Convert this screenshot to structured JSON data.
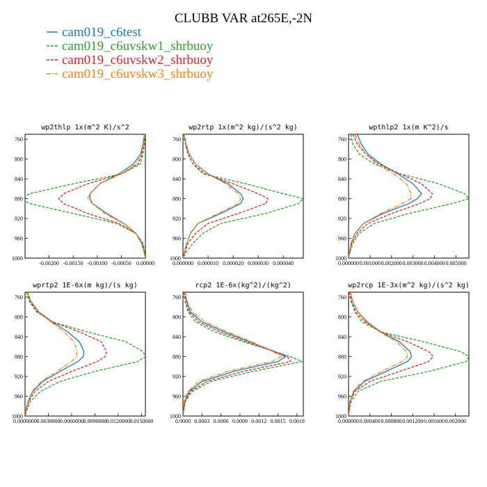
{
  "chart_data": {
    "type": "line",
    "title": "CLUBB VAR at265E,-2N",
    "legend": [
      {
        "name": "cam019_c6test",
        "color": "#1f77b4",
        "dash": "solid"
      },
      {
        "name": "cam019_c6uvskw1_shrbuoy",
        "color": "#2ca02c",
        "dash": "dashed"
      },
      {
        "name": "cam019_c6uvskw2_shrbuoy",
        "color": "#d62728",
        "dash": "dashed"
      },
      {
        "name": "cam019_c6uvskw3_shrbuoy",
        "color": "#ff7f0e",
        "dash": "dashdot"
      }
    ],
    "y_axis": {
      "range": [
        750,
        1000
      ],
      "inverted": true,
      "ticks": [
        "760",
        "800",
        "840",
        "880",
        "920",
        "960",
        "1000"
      ],
      "tick_values": [
        760,
        800,
        840,
        880,
        920,
        960,
        1000
      ]
    },
    "y": [
      750,
      770,
      790,
      810,
      830,
      850,
      870,
      880,
      890,
      910,
      930,
      950,
      970,
      990,
      1000
    ],
    "panels": [
      {
        "title": "wp2thlp  1x(m^2 K)/s^2",
        "xlim": [
          -0.0025,
          0.0
        ],
        "x_ticks": [
          "-0.00200",
          "-0.00150",
          "-0.00100",
          "-0.00050",
          "0.00000"
        ],
        "x_tick_values": [
          -0.002,
          -0.0015,
          -0.001,
          -0.0005,
          0.0
        ],
        "series": [
          [
            -2e-05,
            -5e-05,
            -0.0001,
            -0.00025,
            -0.00055,
            -0.00095,
            -0.00115,
            -0.00115,
            -0.0011,
            -0.0008,
            -0.00045,
            -0.0002,
            -8e-05,
            -2e-05,
            0.0
          ],
          [
            -1e-05,
            -2e-05,
            -5e-05,
            -0.0001,
            -0.0005,
            -0.0015,
            -0.0024,
            -0.0026,
            -0.0024,
            -0.0015,
            -0.0006,
            -0.0002,
            -5e-05,
            -1e-05,
            0.0
          ],
          [
            -2e-05,
            -3e-05,
            -6e-05,
            -0.00015,
            -0.0005,
            -0.0012,
            -0.0017,
            -0.0018,
            -0.0017,
            -0.0012,
            -0.00055,
            -0.0002,
            -6e-05,
            -2e-05,
            0.0
          ],
          [
            -2e-05,
            -4e-05,
            -8e-05,
            -0.0002,
            -0.0005,
            -0.00095,
            -0.00115,
            -0.0012,
            -0.0011,
            -0.00085,
            -0.00045,
            -0.0002,
            -8e-05,
            -2e-05,
            0.0
          ]
        ]
      },
      {
        "title": "wp2rtp  1x(m^2 kg)/(s^2 kg)",
        "xlim": [
          0.0,
          4.8e-05
        ],
        "x_ticks": [
          "0.000000",
          "0.000010",
          "0.000020",
          "0.000030",
          "0.000040"
        ],
        "x_tick_values": [
          0.0,
          1e-05,
          2e-05,
          3e-05,
          4e-05
        ],
        "series": [
          [
            5e-07,
            1.2e-06,
            2.5e-06,
            5e-06,
            1e-05,
            1.8e-05,
            2.3e-05,
            2.4e-05,
            2.3e-05,
            1.5e-05,
            6e-06,
            3e-06,
            1.5e-06,
            5e-07,
            0.0
          ],
          [
            4e-07,
            1e-06,
            2e-06,
            4e-06,
            8e-06,
            2.5e-05,
            4e-05,
            4.8e-05,
            4.6e-05,
            3.3e-05,
            1.5e-05,
            8e-06,
            4e-06,
            1e-06,
            0.0
          ],
          [
            5e-07,
            1e-06,
            2e-06,
            4e-06,
            9e-06,
            2e-05,
            3e-05,
            3.4e-05,
            3.3e-05,
            2.2e-05,
            1e-05,
            5e-06,
            2e-06,
            6e-07,
            0.0
          ],
          [
            5e-07,
            1.2e-06,
            2.5e-06,
            5e-06,
            1e-05,
            1.7e-05,
            2.2e-05,
            2.3e-05,
            2.2e-05,
            1.4e-05,
            6e-06,
            3e-06,
            1.5e-06,
            5e-07,
            0.0
          ]
        ]
      },
      {
        "title": "wpthlp2  1x(m K^2)/s",
        "xlim": [
          0.0,
          0.0056
        ],
        "x_ticks": [
          "0.000000",
          "0.001000",
          "0.002000",
          "0.003000",
          "0.004000",
          "0.005000"
        ],
        "x_tick_values": [
          0.0,
          0.001,
          0.002,
          0.003,
          0.004,
          0.005
        ],
        "series": [
          [
            0.0004,
            0.0006,
            0.0009,
            0.0015,
            0.0023,
            0.003,
            0.0034,
            0.0032,
            0.0028,
            0.0016,
            0.0007,
            0.0003,
            0.00012,
            4e-05,
            0.0
          ],
          [
            0.0001,
            0.0002,
            0.0005,
            0.0012,
            0.0024,
            0.0042,
            0.0054,
            0.0056,
            0.0048,
            0.0028,
            0.0012,
            0.0005,
            0.0002,
            5e-05,
            0.0
          ],
          [
            0.0002,
            0.0004,
            0.0008,
            0.0014,
            0.0024,
            0.0034,
            0.0039,
            0.0038,
            0.0033,
            0.002,
            0.0009,
            0.0004,
            0.00015,
            4e-05,
            0.0
          ],
          [
            0.0003,
            0.0005,
            0.0008,
            0.0013,
            0.0021,
            0.0027,
            0.0029,
            0.0029,
            0.0025,
            0.0015,
            0.0007,
            0.0003,
            0.00012,
            4e-05,
            0.0
          ]
        ]
      },
      {
        "title": "wprtp2  1E-6x(m kg)/(s kg)",
        "xlim": [
          0.0,
          0.0155
        ],
        "x_ticks": [
          "0.0000000",
          "0.0030000",
          "0.0060000",
          "0.0090000",
          "0.0120000",
          "0.0150000"
        ],
        "x_tick_values": [
          0.0,
          0.003,
          0.006,
          0.009,
          0.012,
          0.015
        ],
        "series": [
          [
            0.0003,
            0.0008,
            0.0018,
            0.0035,
            0.0055,
            0.007,
            0.0076,
            0.0075,
            0.0068,
            0.0045,
            0.0023,
            0.001,
            0.0004,
            0.0001,
            0.0
          ],
          [
            0.0002,
            0.0006,
            0.0015,
            0.0035,
            0.008,
            0.013,
            0.0152,
            0.0155,
            0.0145,
            0.009,
            0.0045,
            0.002,
            0.0007,
            0.0002,
            0.0
          ],
          [
            0.0003,
            0.0007,
            0.0016,
            0.0035,
            0.007,
            0.0098,
            0.0105,
            0.0103,
            0.0093,
            0.006,
            0.003,
            0.0013,
            0.0005,
            0.0001,
            0.0
          ],
          [
            0.0003,
            0.0008,
            0.0018,
            0.0033,
            0.005,
            0.0063,
            0.0067,
            0.0066,
            0.006,
            0.0041,
            0.0021,
            0.0009,
            0.0004,
            0.0001,
            0.0
          ]
        ]
      },
      {
        "title": "rcp2  1E-6x(kg^2)/(kg^2)",
        "xlim": [
          0.0,
          0.0019
        ],
        "x_ticks": [
          "0.0000",
          "0.0003",
          "0.0006",
          "0.0009",
          "0.0012",
          "0.0015",
          "0.0018"
        ],
        "x_tick_values": [
          0.0,
          0.0003,
          0.0006,
          0.0009,
          0.0012,
          0.0015,
          0.0018
        ],
        "series": [
          [
            3e-05,
            6e-05,
            0.00012,
            0.0003,
            0.00065,
            0.00105,
            0.00145,
            0.00162,
            0.0015,
            0.0008,
            0.0003,
            0.0001,
            3e-05,
            1e-05,
            0.0
          ],
          [
            2e-05,
            4e-05,
            8e-05,
            0.0002,
            0.0005,
            0.00095,
            0.00145,
            0.0017,
            0.00188,
            0.0011,
            0.00045,
            0.00015,
            4e-05,
            1e-05,
            0.0
          ],
          [
            2e-05,
            4e-05,
            0.0001,
            0.00025,
            0.00058,
            0.001,
            0.00145,
            0.00165,
            0.0017,
            0.00095,
            0.00038,
            0.00012,
            3e-05,
            1e-05,
            0.0
          ],
          [
            3e-05,
            7e-05,
            0.00015,
            0.00035,
            0.0007,
            0.00108,
            0.00142,
            0.00155,
            0.0014,
            0.0007,
            0.00025,
            8e-05,
            2e-05,
            1e-05,
            0.0
          ]
        ]
      },
      {
        "title": "wp2rcp  1E-3x(m^2 kg)/(s^2 kg)",
        "xlim": [
          0.0,
          0.00225
        ],
        "x_ticks": [
          "0.000000",
          "0.000400",
          "0.000800",
          "0.001200",
          "0.001600",
          "0.002000"
        ],
        "x_tick_values": [
          0.0,
          0.0004,
          0.0008,
          0.0012,
          0.0016,
          0.002
        ],
        "series": [
          [
            3e-05,
            8e-05,
            0.00018,
            0.00035,
            0.0006,
            0.00095,
            0.00115,
            0.00118,
            0.0011,
            0.0007,
            0.0003,
            0.0001,
            3e-05,
            1e-05,
            0.0
          ],
          [
            2e-05,
            5e-05,
            0.00012,
            0.00025,
            0.0006,
            0.0014,
            0.0021,
            0.00225,
            0.0022,
            0.0015,
            0.0006,
            0.00018,
            5e-05,
            1e-05,
            0.0
          ],
          [
            2e-05,
            6e-05,
            0.00014,
            0.0003,
            0.0006,
            0.0011,
            0.0015,
            0.00158,
            0.0015,
            0.00095,
            0.0004,
            0.00012,
            3e-05,
            1e-05,
            0.0
          ],
          [
            3e-05,
            8e-05,
            0.00018,
            0.00033,
            0.00058,
            0.0009,
            0.00108,
            0.0011,
            0.001,
            0.00062,
            0.00026,
            9e-05,
            3e-05,
            1e-05,
            0.0
          ]
        ]
      }
    ]
  }
}
